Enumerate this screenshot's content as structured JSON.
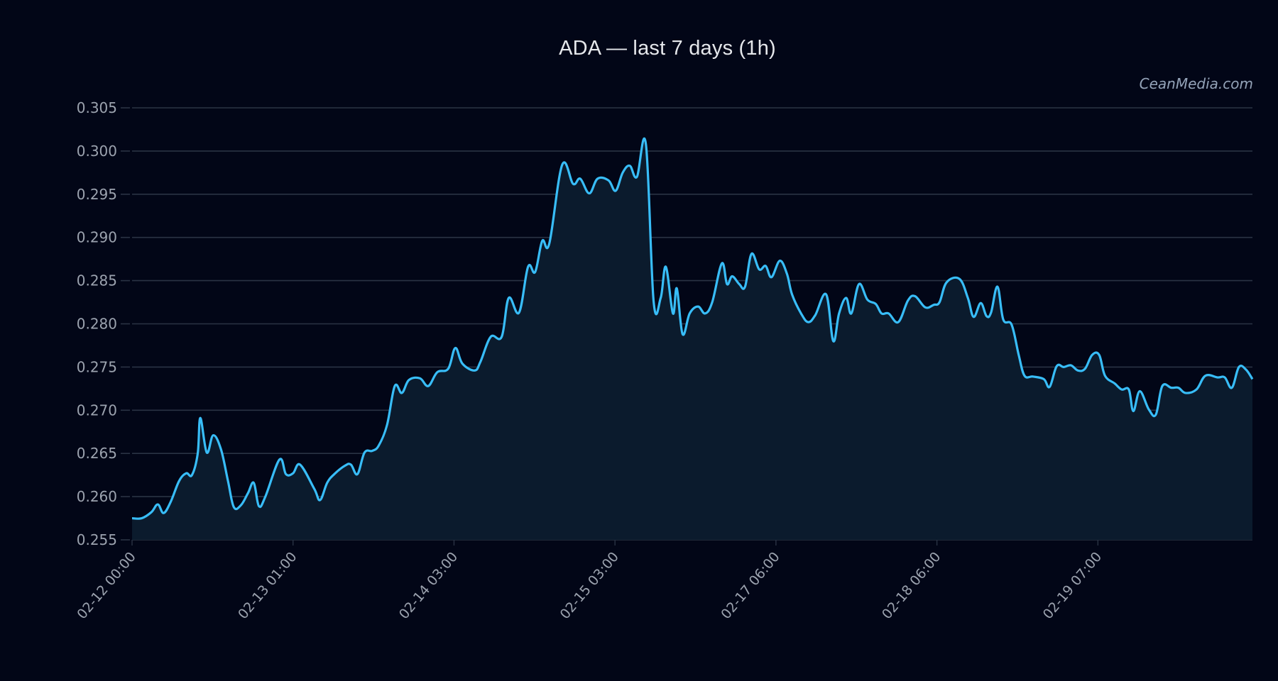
{
  "header": {
    "title": "ADA — last 7 days (1h)",
    "watermark": "CeanMedia.com"
  },
  "colors": {
    "background": "#020617",
    "line": "#38bdf8",
    "fill": "#0b1b2d",
    "grid": "#2a3344",
    "tick_text": "#9ca3af",
    "title_text": "#e5e7eb"
  },
  "chart_data": {
    "type": "area",
    "title": "ADA — last 7 days (1h)",
    "xlabel": "",
    "ylabel": "",
    "ylim": [
      0.255,
      0.305
    ],
    "grid": true,
    "legend": "none",
    "y_ticks": [
      "0.255",
      "0.260",
      "0.265",
      "0.270",
      "0.275",
      "0.280",
      "0.285",
      "0.290",
      "0.295",
      "0.300",
      "0.305"
    ],
    "x_ticks": [
      "02-12 00:00",
      "02-13 01:00",
      "02-14 03:00",
      "02-15 03:00",
      "02-17 06:00",
      "02-18 06:00",
      "02-19 07:00"
    ],
    "x_tick_index": [
      0,
      25,
      50,
      75,
      100,
      125,
      150
    ],
    "x_index_max": 174,
    "series": [
      {
        "name": "ADA",
        "points": [
          [
            0,
            0.2575
          ],
          [
            1.5,
            0.2575
          ],
          [
            3,
            0.2582
          ],
          [
            4,
            0.2591
          ],
          [
            4.9,
            0.2581
          ],
          [
            6,
            0.2594
          ],
          [
            7.3,
            0.2618
          ],
          [
            8.4,
            0.2627
          ],
          [
            9.3,
            0.2625
          ],
          [
            10.2,
            0.265
          ],
          [
            10.6,
            0.2691
          ],
          [
            11.6,
            0.2651
          ],
          [
            12.6,
            0.2671
          ],
          [
            13.8,
            0.2655
          ],
          [
            14.9,
            0.2618
          ],
          [
            15.8,
            0.2588
          ],
          [
            16.9,
            0.259
          ],
          [
            18,
            0.2604
          ],
          [
            18.9,
            0.2616
          ],
          [
            19.7,
            0.2589
          ],
          [
            20.7,
            0.26
          ],
          [
            22.9,
            0.2643
          ],
          [
            23.9,
            0.2626
          ],
          [
            25,
            0.2627
          ],
          [
            26.1,
            0.2637
          ],
          [
            28.3,
            0.2609
          ],
          [
            29.2,
            0.2596
          ],
          [
            30.3,
            0.2616
          ],
          [
            31.4,
            0.2626
          ],
          [
            33.1,
            0.2636
          ],
          [
            34,
            0.2637
          ],
          [
            35,
            0.2626
          ],
          [
            36.1,
            0.2651
          ],
          [
            37.3,
            0.2653
          ],
          [
            38.3,
            0.2659
          ],
          [
            39.6,
            0.2683
          ],
          [
            40.8,
            0.2728
          ],
          [
            41.9,
            0.272
          ],
          [
            43,
            0.2735
          ],
          [
            44.7,
            0.2737
          ],
          [
            46,
            0.2728
          ],
          [
            47.4,
            0.2744
          ],
          [
            49.1,
            0.2748
          ],
          [
            50.2,
            0.2772
          ],
          [
            51.3,
            0.2754
          ],
          [
            53.2,
            0.2746
          ],
          [
            54.1,
            0.2756
          ],
          [
            55.7,
            0.2785
          ],
          [
            57.4,
            0.2785
          ],
          [
            58.5,
            0.283
          ],
          [
            60.1,
            0.2813
          ],
          [
            61.5,
            0.2866
          ],
          [
            62.6,
            0.286
          ],
          [
            63.7,
            0.2896
          ],
          [
            64.8,
            0.2893
          ],
          [
            66.8,
            0.2984
          ],
          [
            68.5,
            0.2962
          ],
          [
            69.6,
            0.2968
          ],
          [
            71,
            0.2951
          ],
          [
            72.3,
            0.2968
          ],
          [
            74,
            0.2966
          ],
          [
            75.1,
            0.2954
          ],
          [
            76.2,
            0.2975
          ],
          [
            77.3,
            0.2983
          ],
          [
            78.4,
            0.297
          ],
          [
            79.8,
            0.3008
          ],
          [
            81,
            0.2826
          ],
          [
            82.1,
            0.283
          ],
          [
            82.9,
            0.2866
          ],
          [
            84,
            0.2812
          ],
          [
            84.6,
            0.2841
          ],
          [
            85.5,
            0.2788
          ],
          [
            86.6,
            0.2812
          ],
          [
            87.9,
            0.282
          ],
          [
            89,
            0.2812
          ],
          [
            90.1,
            0.2825
          ],
          [
            91.6,
            0.287
          ],
          [
            92.4,
            0.2846
          ],
          [
            93.2,
            0.2855
          ],
          [
            94.3,
            0.2846
          ],
          [
            95.2,
            0.2843
          ],
          [
            96.2,
            0.2881
          ],
          [
            97.4,
            0.2863
          ],
          [
            98.4,
            0.2867
          ],
          [
            99.3,
            0.2854
          ],
          [
            100.6,
            0.2873
          ],
          [
            101.7,
            0.2858
          ],
          [
            102.5,
            0.2834
          ],
          [
            103.9,
            0.2812
          ],
          [
            105,
            0.2802
          ],
          [
            106.1,
            0.281
          ],
          [
            107.8,
            0.2834
          ],
          [
            108.9,
            0.278
          ],
          [
            109.8,
            0.2812
          ],
          [
            110.9,
            0.283
          ],
          [
            111.7,
            0.2812
          ],
          [
            112.9,
            0.2846
          ],
          [
            114.2,
            0.2828
          ],
          [
            115.5,
            0.2823
          ],
          [
            116.4,
            0.2812
          ],
          [
            117.5,
            0.2812
          ],
          [
            119,
            0.2802
          ],
          [
            120.5,
            0.2827
          ],
          [
            121.6,
            0.2832
          ],
          [
            123.2,
            0.2819
          ],
          [
            124.5,
            0.2822
          ],
          [
            125.4,
            0.2825
          ],
          [
            126.5,
            0.2848
          ],
          [
            128.5,
            0.2852
          ],
          [
            129.8,
            0.283
          ],
          [
            130.7,
            0.2808
          ],
          [
            131.8,
            0.2824
          ],
          [
            132.7,
            0.2809
          ],
          [
            133.4,
            0.2813
          ],
          [
            134.4,
            0.2843
          ],
          [
            135.3,
            0.2805
          ],
          [
            136.6,
            0.2799
          ],
          [
            137.7,
            0.2764
          ],
          [
            138.6,
            0.274
          ],
          [
            139.9,
            0.2739
          ],
          [
            141.6,
            0.2736
          ],
          [
            142.5,
            0.2727
          ],
          [
            143.6,
            0.2751
          ],
          [
            144.7,
            0.275
          ],
          [
            145.8,
            0.2752
          ],
          [
            146.9,
            0.2746
          ],
          [
            148,
            0.2748
          ],
          [
            149.1,
            0.2764
          ],
          [
            150.2,
            0.2764
          ],
          [
            151.1,
            0.274
          ],
          [
            152.6,
            0.2731
          ],
          [
            153.7,
            0.2724
          ],
          [
            154.8,
            0.2724
          ],
          [
            155.5,
            0.2699
          ],
          [
            156.5,
            0.2722
          ],
          [
            157.9,
            0.2701
          ],
          [
            159,
            0.2695
          ],
          [
            160,
            0.2728
          ],
          [
            161.4,
            0.2726
          ],
          [
            162.5,
            0.2726
          ],
          [
            163.6,
            0.272
          ],
          [
            165.3,
            0.2724
          ],
          [
            166.7,
            0.274
          ],
          [
            168.6,
            0.2738
          ],
          [
            169.7,
            0.2738
          ],
          [
            170.8,
            0.2726
          ],
          [
            171.9,
            0.275
          ],
          [
            173,
            0.2747
          ],
          [
            174,
            0.2736
          ]
        ]
      }
    ]
  }
}
